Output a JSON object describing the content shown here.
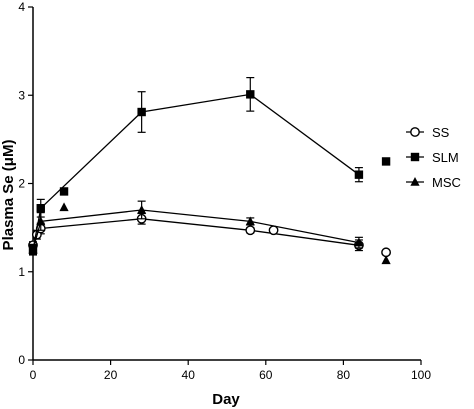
{
  "chart_data": {
    "type": "line",
    "title": "",
    "xlabel": "Day",
    "ylabel": "Plasma Se (μM)",
    "xlim": [
      0,
      100
    ],
    "ylim": [
      0,
      4
    ],
    "x_ticks": [
      0,
      20,
      40,
      60,
      80,
      100
    ],
    "y_ticks": [
      0,
      1,
      2,
      3,
      4
    ],
    "grid": false,
    "legend_position": "right",
    "series": [
      {
        "name": "SS",
        "marker": "circle-open",
        "points": [
          {
            "x": 0,
            "y": 1.3,
            "err": 0.04
          },
          {
            "x": 1,
            "y": 1.42,
            "err": 0.05
          },
          {
            "x": 2,
            "y": 1.49,
            "err": 0.06
          },
          {
            "x": 28,
            "y": 1.6,
            "err": 0.06
          },
          {
            "x": 56,
            "y": 1.47,
            "err": 0.03
          },
          {
            "x": 84,
            "y": 1.3,
            "err": 0.06
          }
        ],
        "extra_points": [
          {
            "x": 62,
            "y": 1.47
          },
          {
            "x": 91,
            "y": 1.22
          }
        ]
      },
      {
        "name": "SLM",
        "marker": "square-filled",
        "points": [
          {
            "x": 0,
            "y": 1.25,
            "err": 0.06
          },
          {
            "x": 2,
            "y": 1.72,
            "err": 0.1
          },
          {
            "x": 28,
            "y": 2.81,
            "err": 0.23
          },
          {
            "x": 56,
            "y": 3.01,
            "err": 0.19
          },
          {
            "x": 84,
            "y": 2.1,
            "err": 0.08
          }
        ],
        "extra_points": [
          {
            "x": 8,
            "y": 1.91
          },
          {
            "x": 91,
            "y": 2.25
          }
        ]
      },
      {
        "name": "MSC",
        "marker": "triangle-filled",
        "points": [
          {
            "x": 0,
            "y": 1.25,
            "err": 0.05
          },
          {
            "x": 2,
            "y": 1.57,
            "err": 0.1
          },
          {
            "x": 28,
            "y": 1.7,
            "err": 0.1
          },
          {
            "x": 56,
            "y": 1.57,
            "err": 0.04
          },
          {
            "x": 84,
            "y": 1.33,
            "err": 0.06
          }
        ],
        "extra_points": [
          {
            "x": 8,
            "y": 1.73
          },
          {
            "x": 91,
            "y": 1.13
          }
        ]
      }
    ]
  }
}
